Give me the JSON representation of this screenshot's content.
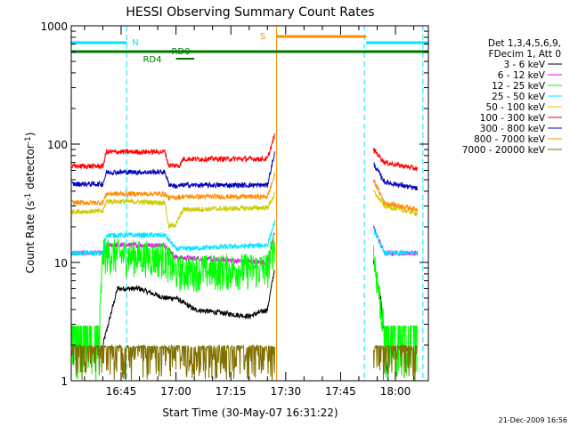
{
  "chart_data": {
    "type": "line",
    "title": "HESSI Observing Summary Count Rates",
    "xlabel": "Start Time (30-May-07 16:31:22)",
    "ylabel": "Count Rate (s",
    "ylabel_sup": "-1",
    "ylabel_rest": " detector",
    "ylabel_end": ")",
    "yscale": "log",
    "ylim": [
      1,
      1000
    ],
    "xlim": [
      "16:31:22",
      "18:09:00"
    ],
    "x_ticks": [
      "16:45",
      "17:00",
      "17:15",
      "17:30",
      "17:45",
      "18:00"
    ],
    "y_ticks": [
      "1",
      "10",
      "100",
      "1000"
    ],
    "legend_header": [
      "Det 1,3,4,5,6,9,",
      "FDecim 1, Att 0"
    ],
    "legend_position": "right",
    "timestamp": "21-Dec-2009 16:56",
    "flags": [
      {
        "label": "N",
        "color": "#00e5ff",
        "segments": [
          [
            "16:31:22",
            "16:46:30"
          ],
          [
            "17:52:00",
            "18:09:00"
          ]
        ]
      },
      {
        "label": "S",
        "color": "#ff8c00",
        "segments": [
          [
            "17:27:30",
            "17:52:00"
          ]
        ]
      },
      {
        "label": "RD0",
        "color": "#007700",
        "segments": [
          [
            "16:31:22",
            "18:09:00"
          ]
        ]
      },
      {
        "label": "RD4",
        "color": "#007700",
        "segments": [
          [
            "17:00:00",
            "17:05:00"
          ]
        ]
      }
    ],
    "vlines": [
      {
        "time": "16:31:22",
        "color": "#00e5ff"
      },
      {
        "time": "16:46:30",
        "color": "#00e5ff"
      },
      {
        "time": "17:51:30",
        "color": "#00e5ff"
      },
      {
        "time": "18:07:30",
        "color": "#00e5ff"
      },
      {
        "time": "17:27:30",
        "color": "#ff8c00"
      }
    ],
    "gap": [
      "17:27:30",
      "17:53:30"
    ],
    "series": [
      {
        "name": "3 - 6 keV",
        "color": "#000000",
        "points": [
          [
            "16:40:00",
            2
          ],
          [
            "16:44:00",
            6
          ],
          [
            "16:50:00",
            6
          ],
          [
            "16:57:00",
            5
          ],
          [
            "17:00:00",
            5
          ],
          [
            "17:05:00",
            4
          ],
          [
            "17:20:00",
            3.5
          ],
          [
            "17:25:00",
            4
          ],
          [
            "17:27:00",
            9
          ],
          [
            "17:54:00",
            10
          ],
          [
            "17:56:00",
            5
          ],
          [
            "17:58:00",
            1
          ]
        ]
      },
      {
        "name": "6 - 12 keV",
        "color": "#ff00ff",
        "points": [
          [
            "16:31:30",
            12
          ],
          [
            "16:40:00",
            12
          ],
          [
            "16:41:00",
            14
          ],
          [
            "16:57:00",
            14
          ],
          [
            "17:00:00",
            11
          ],
          [
            "17:25:00",
            10
          ],
          [
            "17:27:00",
            18
          ],
          [
            "17:54:00",
            20
          ],
          [
            "17:57:00",
            12
          ],
          [
            "18:06:00",
            12
          ]
        ]
      },
      {
        "name": "12 - 25 keV",
        "color": "#00ff00",
        "points": [
          [
            "16:31:30",
            2.5
          ],
          [
            "16:39:00",
            2.5
          ],
          [
            "16:40:00",
            12
          ],
          [
            "16:57:00",
            11
          ],
          [
            "17:00:00",
            8.5
          ],
          [
            "17:25:00",
            9
          ],
          [
            "17:27:00",
            15
          ],
          [
            "17:54:00",
            12
          ],
          [
            "17:57:00",
            2.5
          ],
          [
            "18:06:00",
            2.5
          ]
        ]
      },
      {
        "name": "25 - 50 keV",
        "color": "#00e5ff",
        "points": [
          [
            "16:31:30",
            12
          ],
          [
            "16:40:00",
            12
          ],
          [
            "16:41:00",
            17
          ],
          [
            "16:57:00",
            17
          ],
          [
            "17:00:00",
            13
          ],
          [
            "17:25:00",
            14
          ],
          [
            "17:27:00",
            22
          ],
          [
            "17:54:00",
            19
          ],
          [
            "17:57:00",
            12
          ],
          [
            "18:06:00",
            12
          ]
        ]
      },
      {
        "name": "50 - 100 keV",
        "color": "#cccc00",
        "points": [
          [
            "16:31:30",
            27
          ],
          [
            "16:40:00",
            27
          ],
          [
            "16:41:00",
            33
          ],
          [
            "16:57:00",
            32
          ],
          [
            "16:58:00",
            20
          ],
          [
            "17:00:00",
            21
          ],
          [
            "17:02:00",
            28
          ],
          [
            "17:25:00",
            29
          ],
          [
            "17:27:00",
            38
          ],
          [
            "17:54:00",
            40
          ],
          [
            "17:57:00",
            30
          ],
          [
            "18:06:00",
            26
          ]
        ]
      },
      {
        "name": "100 - 300 keV",
        "color": "#ff0000",
        "points": [
          [
            "16:31:30",
            65
          ],
          [
            "16:40:00",
            65
          ],
          [
            "16:41:00",
            86
          ],
          [
            "16:57:00",
            86
          ],
          [
            "16:58:00",
            66
          ],
          [
            "17:01:00",
            66
          ],
          [
            "17:02:00",
            75
          ],
          [
            "17:25:00",
            75
          ],
          [
            "17:27:00",
            120
          ],
          [
            "17:54:00",
            90
          ],
          [
            "17:57:00",
            70
          ],
          [
            "18:06:00",
            62
          ]
        ]
      },
      {
        "name": "300 - 800 keV",
        "color": "#0000bb",
        "points": [
          [
            "16:31:30",
            46
          ],
          [
            "16:40:00",
            46
          ],
          [
            "16:41:00",
            58
          ],
          [
            "16:57:00",
            58
          ],
          [
            "16:58:00",
            46
          ],
          [
            "17:00:00",
            44
          ],
          [
            "17:02:00",
            45
          ],
          [
            "17:25:00",
            45
          ],
          [
            "17:27:00",
            85
          ],
          [
            "17:54:00",
            68
          ],
          [
            "17:57:00",
            48
          ],
          [
            "18:06:00",
            42
          ]
        ]
      },
      {
        "name": "800 - 7000 keV",
        "color": "#ff8c00",
        "points": [
          [
            "16:31:30",
            32
          ],
          [
            "16:40:00",
            32
          ],
          [
            "16:41:00",
            38
          ],
          [
            "16:57:00",
            38
          ],
          [
            "16:58:00",
            35
          ],
          [
            "17:02:00",
            36
          ],
          [
            "17:25:00",
            36
          ],
          [
            "17:27:00",
            55
          ],
          [
            "17:54:00",
            50
          ],
          [
            "17:57:00",
            32
          ],
          [
            "18:06:00",
            28
          ]
        ]
      },
      {
        "name": "7000 - 20000 keV",
        "color": "#807000",
        "points": [
          [
            "16:31:30",
            1.5
          ],
          [
            "16:40:00",
            1.5
          ],
          [
            "17:00:00",
            1.5
          ],
          [
            "17:26:00",
            1.5
          ],
          [
            "17:27:00",
            3
          ],
          [
            "17:54:00",
            1.5
          ],
          [
            "18:06:00",
            1.5
          ]
        ]
      }
    ]
  }
}
